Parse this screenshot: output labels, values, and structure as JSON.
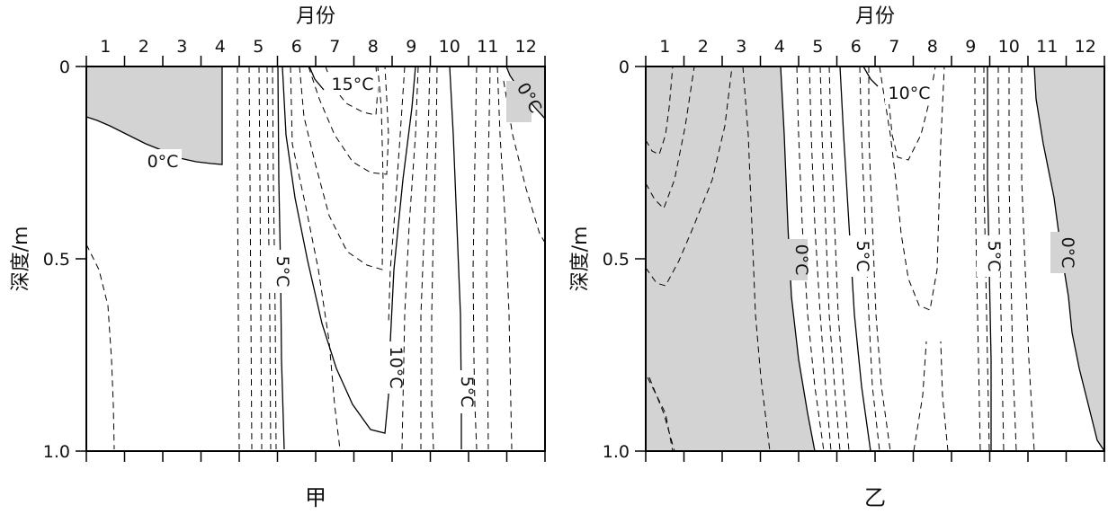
{
  "chart_data": [
    {
      "type": "contour",
      "panel_label": "甲",
      "xlabel": "月份",
      "ylabel": "深度/m",
      "x_ticks": [
        "1",
        "2",
        "3",
        "4",
        "5",
        "6",
        "7",
        "8",
        "9",
        "10",
        "11",
        "12"
      ],
      "y_ticks": [
        "0",
        "0.5",
        "1.0"
      ],
      "xlim": [
        0.5,
        12.5
      ],
      "ylim": [
        0,
        1.0
      ],
      "y_inverted": true,
      "shaded_region_meaning": "below 0°C",
      "shade_color": "#d3d3d3",
      "contour_labels": [
        "0°C",
        "0°C",
        "5°C",
        "10°C",
        "5°C",
        "15°C"
      ]
    },
    {
      "type": "contour",
      "panel_label": "乙",
      "xlabel": "月份",
      "ylabel": "深度/m",
      "x_ticks": [
        "1",
        "2",
        "3",
        "4",
        "5",
        "6",
        "7",
        "8",
        "9",
        "10",
        "11",
        "12"
      ],
      "y_ticks": [
        "0",
        "0.5",
        "1.0"
      ],
      "xlim": [
        0.5,
        12.5
      ],
      "ylim": [
        0,
        1.0
      ],
      "y_inverted": true,
      "shaded_region_meaning": "below 0°C",
      "shade_color": "#d3d3d3",
      "contour_labels": [
        "10°C",
        "0°C",
        "5°C",
        "5°C",
        "0°C"
      ]
    }
  ]
}
